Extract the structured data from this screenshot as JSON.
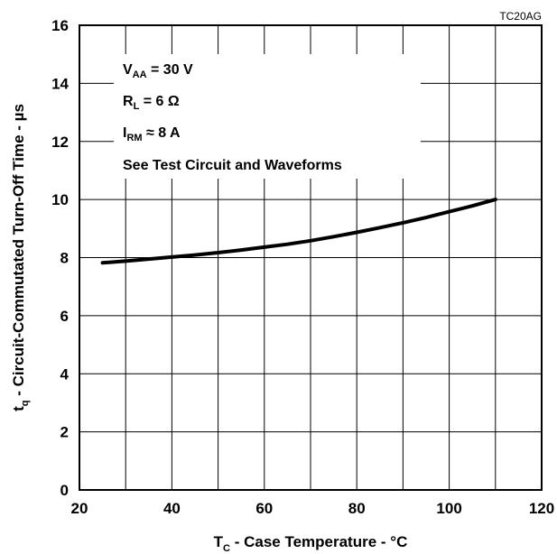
{
  "figure_id": "TC20AG",
  "chart_data": {
    "type": "line",
    "xlabel_main": "T",
    "xlabel_sub": "C",
    "xlabel_rest": " - Case Temperature - °C",
    "ylabel_main": "t",
    "ylabel_sub": "q",
    "ylabel_rest": " - Circuit-Commutated Turn-Off Time - µs",
    "xlim": [
      20,
      120
    ],
    "ylim": [
      0,
      16
    ],
    "x_ticks": [
      "20",
      "40",
      "60",
      "80",
      "100",
      "120"
    ],
    "y_ticks": [
      "0",
      "2",
      "4",
      "6",
      "8",
      "10",
      "12",
      "14",
      "16"
    ],
    "grid": true,
    "series": [
      {
        "x": [
          25,
          30,
          35,
          40,
          45,
          50,
          55,
          60,
          65,
          70,
          75,
          80,
          85,
          90,
          95,
          100,
          105,
          110
        ],
        "y": [
          7.82,
          7.88,
          7.95,
          8.02,
          8.09,
          8.17,
          8.26,
          8.36,
          8.46,
          8.58,
          8.72,
          8.87,
          9.03,
          9.2,
          9.38,
          9.58,
          9.78,
          10.0
        ]
      }
    ],
    "annotations": {
      "vaa_main": "V",
      "vaa_sub": "AA",
      "vaa_rest": " = 30 V",
      "rl_main": "R",
      "rl_sub": "L",
      "rl_rest": " = 6 Ω",
      "irm_main": "I",
      "irm_sub": "RM",
      "irm_rest": " ≈ 8 A",
      "note": "See Test Circuit and Waveforms"
    }
  }
}
